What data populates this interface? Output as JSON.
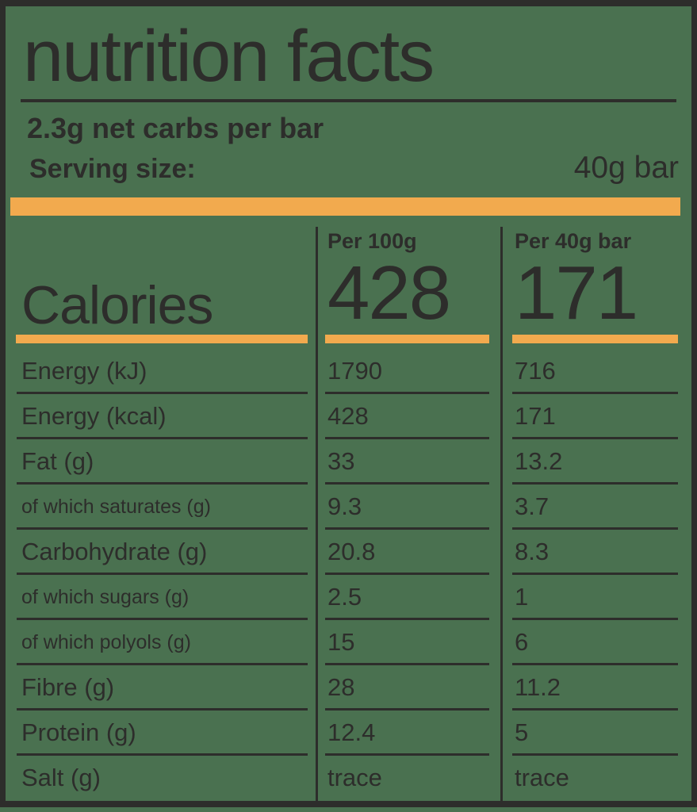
{
  "colors": {
    "background": "#4A7150",
    "ink": "#2D2D2B",
    "accent": "#F2AA4E"
  },
  "header": {
    "title": "nutrition facts",
    "subtitle": "2.3g net carbs per bar",
    "serving_label": "Serving size:",
    "serving_value": "40g bar"
  },
  "table": {
    "calories_label": "Calories",
    "columns": [
      {
        "header": "Per 100g",
        "calories": "428"
      },
      {
        "header": "Per 40g bar",
        "calories": "171"
      }
    ],
    "rows": [
      {
        "label": "Energy (kJ)",
        "per_100g": "1790",
        "per_bar": "716"
      },
      {
        "label": "Energy (kcal)",
        "per_100g": "428",
        "per_bar": "171"
      },
      {
        "label": "Fat (g)",
        "per_100g": "33",
        "per_bar": "13.2"
      },
      {
        "label": "of which saturates (g)",
        "per_100g": "9.3",
        "per_bar": "3.7"
      },
      {
        "label": "Carbohydrate (g)",
        "per_100g": "20.8",
        "per_bar": "8.3"
      },
      {
        "label": "of which sugars (g)",
        "per_100g": "2.5",
        "per_bar": "1"
      },
      {
        "label": "of which polyols (g)",
        "per_100g": "15",
        "per_bar": "6"
      },
      {
        "label": "Fibre (g)",
        "per_100g": "28",
        "per_bar": "11.2"
      },
      {
        "label": "Protein (g)",
        "per_100g": "12.4",
        "per_bar": "5"
      },
      {
        "label": "Salt (g)",
        "per_100g": "trace",
        "per_bar": "trace"
      }
    ]
  }
}
